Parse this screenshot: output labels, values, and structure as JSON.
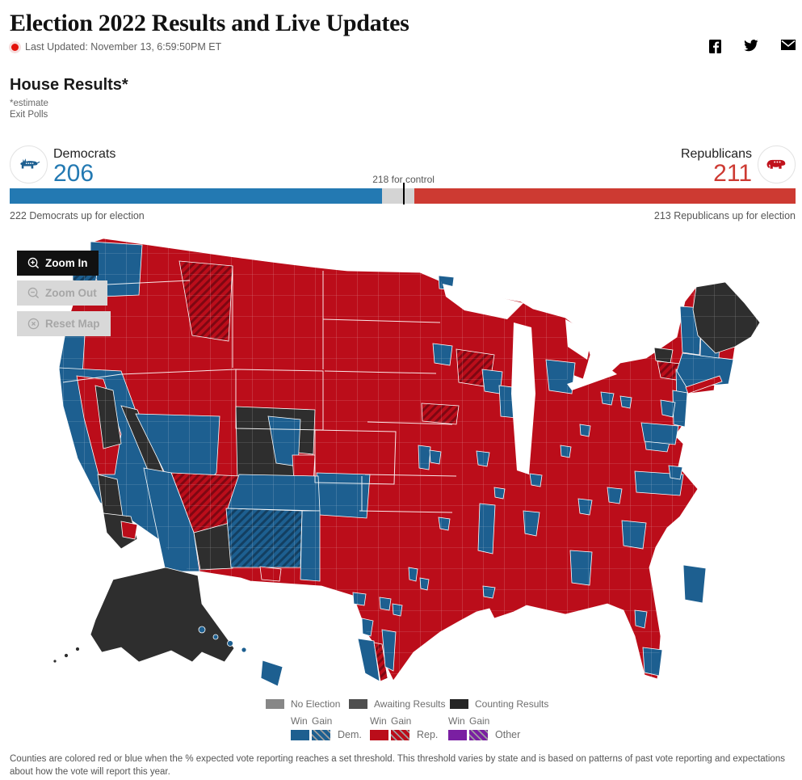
{
  "header": {
    "title": "Election 2022 Results and Live Updates",
    "last_updated": "Last Updated: November 13, 6:59:50PM ET",
    "social": [
      "facebook",
      "twitter",
      "email"
    ]
  },
  "section": {
    "title": "House Results*",
    "estimate_note": "*estimate",
    "exit_polls_label": "Exit Polls"
  },
  "balance_of_power": {
    "total_seats": 435,
    "control_seats": 218,
    "control_label": "218 for control",
    "undecided_color": "#d4d4d4",
    "democrats": {
      "label": "Democrats",
      "seats": 206,
      "up_label": "222 Democrats up for election",
      "color": "#2379b2"
    },
    "republicans": {
      "label": "Republicans",
      "seats": 211,
      "up_label": "213 Republicans up for election",
      "color": "#cd3a32"
    }
  },
  "map": {
    "controls": [
      {
        "id": "zoom-in",
        "label": "Zoom In",
        "enabled": true
      },
      {
        "id": "zoom-out",
        "label": "Zoom Out",
        "enabled": false
      },
      {
        "id": "reset-map",
        "label": "Reset Map",
        "enabled": false
      }
    ],
    "colors": {
      "republican": "#bb0d1a",
      "democrat": "#1d5f90",
      "counting": "#2e2e2e",
      "republican_stripe": "#7e0712",
      "democrat_stripe": "#133f61",
      "other": "#7a1fa2"
    },
    "legend": {
      "statuses": [
        {
          "label": "No Election",
          "color": "#878787"
        },
        {
          "label": "Awaiting Results",
          "color": "#4f4f4f"
        },
        {
          "label": "Counting Results",
          "color": "#252525"
        }
      ],
      "win_label": "Win",
      "gain_label": "Gain",
      "parties": [
        {
          "label": "Dem.",
          "color": "#1d5f90"
        },
        {
          "label": "Rep.",
          "color": "#bb0d1a"
        },
        {
          "label": "Other",
          "color": "#7a1fa2"
        }
      ]
    }
  },
  "footer": {
    "note": "Counties are colored red or blue when the % expected vote reporting reaches a set threshold. This threshold varies by state and is based on patterns of past vote reporting and expectations about how the vote will report this year."
  }
}
